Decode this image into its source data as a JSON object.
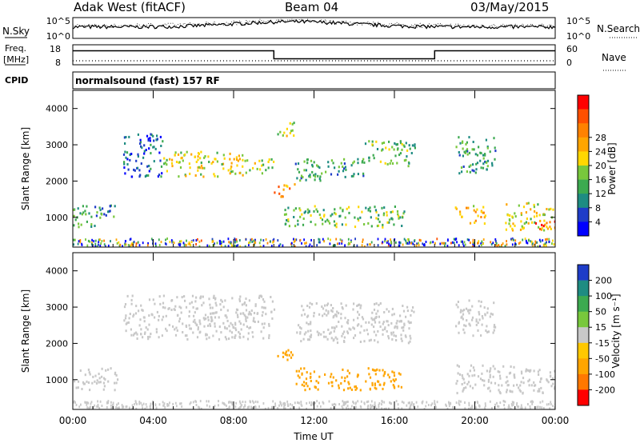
{
  "header": {
    "station": "Adak West (fitACF)",
    "beam": "Beam 04",
    "date": "03/May/2015"
  },
  "side_labels": {
    "nsky": "N.Sky",
    "freq": "Freq.",
    "freq_unit": "[MHz]",
    "cpid": "CPID",
    "nsearch": "N.Search",
    "nave": "Nave"
  },
  "program": "normalsound (fast) 157 RF",
  "chart_data": [
    {
      "type": "line",
      "name": "noise panel",
      "left_ticks": [
        "10^5",
        "10^0"
      ],
      "right_ticks": [
        "10^5",
        "10^0"
      ],
      "series": [
        {
          "name": "N.Sky",
          "style": "solid"
        },
        {
          "name": "N.Search",
          "style": "dotted"
        }
      ]
    },
    {
      "type": "line",
      "name": "frequency / nave panel",
      "left_ticks": [
        "18",
        "8"
      ],
      "right_ticks": [
        "60",
        "0"
      ],
      "ylim_left": [
        8,
        18
      ],
      "ylim_right": [
        0,
        60
      ],
      "series": [
        {
          "name": "Freq.",
          "style": "solid",
          "x": [
            0,
            10,
            10,
            18,
            18,
            24
          ],
          "y": [
            15,
            15,
            11,
            11,
            15,
            15
          ]
        },
        {
          "name": "Nave",
          "style": "dotted",
          "x": [
            0,
            24
          ],
          "y": [
            10,
            10
          ]
        }
      ]
    },
    {
      "type": "heatmap",
      "name": "power",
      "ylabel": "Slant Range [km]",
      "yticks": [
        1000,
        2000,
        3000,
        4000
      ],
      "ylim": [
        180,
        4500
      ],
      "xlim": [
        0,
        24
      ],
      "colorbar": {
        "label": "Power [dB]",
        "ticks": [
          "4",
          "8",
          "12",
          "16",
          "20",
          "24",
          "28"
        ],
        "colors": [
          "#0000ff",
          "#1e3cc8",
          "#1e8c82",
          "#3caa50",
          "#78c83c",
          "#ffd700",
          "#ffa500",
          "#ff8200",
          "#ff5000",
          "#ff0000"
        ]
      },
      "regions": [
        {
          "x": [
            0,
            1.4
          ],
          "y": [
            700,
            1300
          ],
          "value": 10
        },
        {
          "x": [
            1.0,
            2.2
          ],
          "y": [
            1000,
            1350
          ],
          "value": 8
        },
        {
          "x": [
            2.5,
            4.5
          ],
          "y": [
            2100,
            3300
          ],
          "value": 6
        },
        {
          "x": [
            4.5,
            8.5
          ],
          "y": [
            2100,
            2800
          ],
          "value": 16
        },
        {
          "x": [
            8.5,
            10.0
          ],
          "y": [
            2200,
            2600
          ],
          "value": 14
        },
        {
          "x": [
            10.0,
            11.0
          ],
          "y": [
            1550,
            1900
          ],
          "value": 22
        },
        {
          "x": [
            10.0,
            11.0
          ],
          "y": [
            3200,
            3600
          ],
          "value": 14
        },
        {
          "x": [
            11.0,
            14.5
          ],
          "y": [
            2000,
            2600
          ],
          "value": 10
        },
        {
          "x": [
            14.5,
            17.0
          ],
          "y": [
            2400,
            3100
          ],
          "value": 12
        },
        {
          "x": [
            10.5,
            16.5
          ],
          "y": [
            700,
            1300
          ],
          "value": 12
        },
        {
          "x": [
            19.0,
            21.0
          ],
          "y": [
            2200,
            3200
          ],
          "value": 10
        },
        {
          "x": [
            19.0,
            20.5
          ],
          "y": [
            800,
            1300
          ],
          "value": 18
        },
        {
          "x": [
            21.5,
            24.0
          ],
          "y": [
            600,
            1400
          ],
          "value": 16
        },
        {
          "x": [
            23.0,
            24.0
          ],
          "y": [
            600,
            900
          ],
          "value": 24
        }
      ]
    },
    {
      "type": "heatmap",
      "name": "velocity",
      "ylabel": "Slant Range [km]",
      "xlabel": "Time UT",
      "xticks": [
        "00:00",
        "04:00",
        "08:00",
        "12:00",
        "16:00",
        "20:00",
        "00:00"
      ],
      "yticks": [
        1000,
        2000,
        3000,
        4000
      ],
      "ylim": [
        180,
        4500
      ],
      "xlim": [
        0,
        24
      ],
      "colorbar": {
        "label": "Velocity [m s⁻¹]",
        "ticks": [
          "200",
          "100",
          "50",
          "15",
          "-15",
          "-50",
          "-100",
          "-200"
        ],
        "colors": [
          "#1e3cc8",
          "#1e8c82",
          "#3caa50",
          "#78c83c",
          "#c8c8c8",
          "#ffc800",
          "#ffa500",
          "#ff7800",
          "#ff0000"
        ]
      },
      "regions": [
        {
          "x": [
            0,
            2.2
          ],
          "y": [
            700,
            1300
          ],
          "value": 0
        },
        {
          "x": [
            2.5,
            10.0
          ],
          "y": [
            2100,
            3300
          ],
          "value": 0
        },
        {
          "x": [
            10.0,
            11.0
          ],
          "y": [
            1500,
            1900
          ],
          "value": -60
        },
        {
          "x": [
            11.0,
            17.0
          ],
          "y": [
            2000,
            3100
          ],
          "value": 0
        },
        {
          "x": [
            11.0,
            16.5
          ],
          "y": [
            700,
            1300
          ],
          "value": -50
        },
        {
          "x": [
            19.0,
            21.0
          ],
          "y": [
            2200,
            3200
          ],
          "value": 0
        },
        {
          "x": [
            19.0,
            24.0
          ],
          "y": [
            600,
            1400
          ],
          "value": 0
        }
      ]
    }
  ]
}
